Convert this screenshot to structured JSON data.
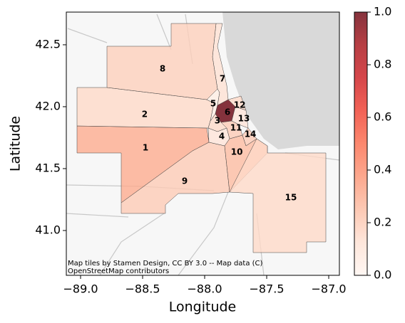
{
  "chart_data": {
    "type": "choropleth",
    "xlabel": "Longitude",
    "ylabel": "Latitude",
    "xlim": [
      -89.115,
      -86.914
    ],
    "ylim": [
      40.638,
      42.764
    ],
    "xticks": [
      {
        "value": -89.0,
        "label": "−89.0"
      },
      {
        "value": -88.5,
        "label": "−88.5"
      },
      {
        "value": -88.0,
        "label": "−88.0"
      },
      {
        "value": -87.5,
        "label": "−87.5"
      },
      {
        "value": -87.0,
        "label": "−87.0"
      }
    ],
    "yticks": [
      {
        "value": 41.0,
        "label": "41.0"
      },
      41.5,
      {
        "value": 42.0,
        "label": "42.0"
      },
      42.5
    ],
    "cmap": "Reds",
    "regions": [
      {
        "label": "1",
        "lon": -88.477,
        "lat": 41.667,
        "value": 0.3
      },
      {
        "label": "2",
        "lon": -88.483,
        "lat": 41.937,
        "value": 0.15
      },
      {
        "label": "3",
        "lon": -87.897,
        "lat": 41.885,
        "value": 0.15
      },
      {
        "label": "4",
        "lon": -87.862,
        "lat": 41.759,
        "value": 0.1
      },
      {
        "label": "5",
        "lon": -87.931,
        "lat": 42.023,
        "value": 0.05
      },
      {
        "label": "6",
        "lon": -87.816,
        "lat": 41.954,
        "value": 1.0
      },
      {
        "label": "7",
        "lon": -87.856,
        "lat": 42.224,
        "value": 0.12
      },
      {
        "label": "8",
        "lon": -88.339,
        "lat": 42.305,
        "value": 0.18
      },
      {
        "label": "9",
        "lon": -88.161,
        "lat": 41.397,
        "value": 0.2
      },
      {
        "label": "10",
        "lon": -87.741,
        "lat": 41.632,
        "value": 0.25
      },
      {
        "label": "11",
        "lon": -87.747,
        "lat": 41.828,
        "value": 0.2
      },
      {
        "label": "12",
        "lon": -87.718,
        "lat": 42.011,
        "value": 0.15
      },
      {
        "label": "13",
        "lon": -87.684,
        "lat": 41.902,
        "value": 0.1
      },
      {
        "label": "14",
        "lon": -87.632,
        "lat": 41.776,
        "value": 0.2
      },
      {
        "label": "15",
        "lon": -87.305,
        "lat": 41.264,
        "value": 0.15
      }
    ],
    "colorbar": {
      "clim": [
        0,
        1
      ],
      "ticks": [
        {
          "value": 0.0,
          "label": "0.0"
        },
        0.2,
        0.4,
        0.6,
        0.8,
        {
          "value": 1.0,
          "label": "1.0"
        }
      ]
    },
    "attribution": [
      "Map tiles by Stamen Design, CC BY 3.0 -- Map data (C)",
      "OpenStreetMap contributors"
    ]
  }
}
